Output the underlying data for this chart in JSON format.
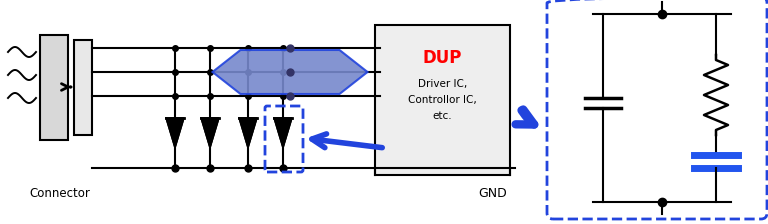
{
  "fig_width": 7.68,
  "fig_height": 2.24,
  "dpi": 100,
  "bg_color": "#ffffff",
  "blue_color": "#2244dd",
  "blue_fill": "#7788cc",
  "blue_cap": "#2255ee",
  "connector_label": "Connector",
  "gnd_label": "GND",
  "dup_label": "DUP",
  "dup_sub": "Driver IC,\nControllor IC,\netc.",
  "dup_color": "#ff0000",
  "black": "#000000",
  "gray_light": "#d8d8d8",
  "gray_med": "#e8e8e8",
  "dup_bg": "#eeeeee"
}
